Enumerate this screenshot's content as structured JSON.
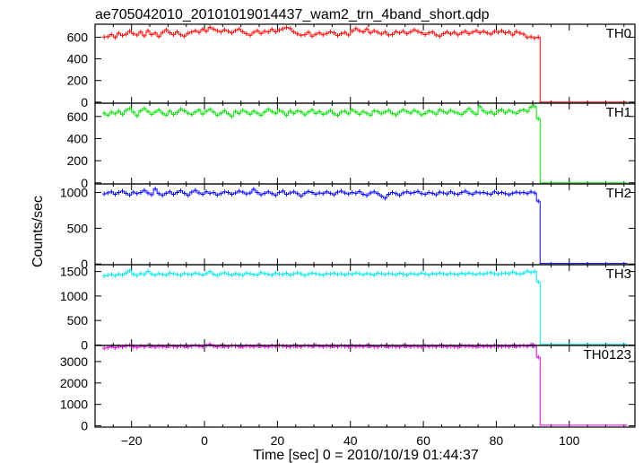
{
  "chart_data": {
    "type": "line",
    "title": "ae705042010_20101019014437_wam2_trn_4band_short.qdp",
    "xlabel": "Time [sec] 0 = 2010/10/19 01:44:37",
    "ylabel": "Counts/sec",
    "xlim": [
      -30,
      118
    ],
    "x_ticks": [
      -20,
      0,
      20,
      40,
      60,
      80,
      100
    ],
    "grid": false,
    "step": 1,
    "t_start": -28,
    "t_end": 116,
    "t_drop": 92,
    "panels": [
      {
        "name": "TH0",
        "color": "#ff0000",
        "ylim": [
          -10,
          720
        ],
        "yticks": [
          0,
          200,
          400,
          600
        ],
        "post_level": 0,
        "values": [
          602,
          605,
          625,
          598,
          638,
          615,
          628,
          655,
          632,
          620,
          648,
          612,
          660,
          625,
          638,
          606,
          644,
          668,
          640,
          624,
          650,
          622,
          610,
          636,
          648,
          660,
          645,
          672,
          655,
          690,
          675,
          660,
          648,
          668,
          655,
          640,
          662,
          676,
          650,
          632,
          618,
          645,
          660,
          635,
          655,
          648,
          672,
          650,
          664,
          678,
          690,
          680,
          648,
          630,
          618,
          624,
          646,
          610,
          628,
          640,
          622,
          635,
          650,
          640,
          615,
          632,
          644,
          620,
          656,
          680,
          660,
          648,
          676,
          640,
          660,
          645,
          630,
          648,
          620,
          625,
          652,
          640,
          655,
          632,
          648,
          668,
          654,
          640,
          625,
          640,
          648,
          620,
          610,
          632,
          648,
          630,
          645,
          622,
          640,
          655,
          632,
          646,
          660,
          641,
          655,
          640,
          628,
          654,
          645,
          660,
          640,
          648,
          620,
          652,
          638,
          628,
          598,
          604,
          592,
          600
        ]
      },
      {
        "name": "TH1",
        "color": "#00e000",
        "ylim": [
          -10,
          720
        ],
        "yticks": [
          0,
          200,
          400,
          600
        ],
        "post_level": 0,
        "values": [
          630,
          612,
          640,
          625,
          648,
          618,
          655,
          672,
          640,
          605,
          650,
          672,
          645,
          620,
          640,
          658,
          630,
          612,
          648,
          620,
          636,
          665,
          652,
          630,
          618,
          640,
          658,
          622,
          648,
          665,
          640,
          612,
          630,
          650,
          625,
          600,
          645,
          628,
          655,
          640,
          620,
          648,
          630,
          612,
          640,
          665,
          645,
          628,
          655,
          640,
          612,
          648,
          628,
          650,
          642,
          615,
          640,
          660,
          628,
          645,
          620,
          632,
          655,
          625,
          610,
          640,
          648,
          625,
          660,
          640,
          620,
          645,
          630,
          612,
          650,
          645,
          625,
          640,
          655,
          628,
          615,
          640,
          660,
          645,
          630,
          655,
          640,
          615,
          628,
          650,
          640,
          622,
          660,
          645,
          632,
          655,
          640,
          630,
          618,
          642,
          670,
          640,
          620,
          690,
          650,
          630,
          642,
          620,
          648,
          660,
          632,
          655,
          640,
          628,
          652,
          660,
          645,
          685,
          690,
          580
        ]
      },
      {
        "name": "TH2",
        "color": "#0000ff",
        "ylim": [
          -10,
          1120
        ],
        "yticks": [
          0,
          500,
          1000
        ],
        "post_level": 8,
        "values": [
          980,
          995,
          1010,
          975,
          1000,
          1020,
          990,
          965,
          1005,
          985,
          1000,
          1030,
          995,
          970,
          1050,
          985,
          960,
          990,
          1010,
          975,
          1000,
          1025,
          990,
          960,
          1005,
          1030,
          995,
          975,
          1010,
          990,
          1000,
          965,
          985,
          1010,
          1000,
          975,
          995,
          1020,
          1005,
          980,
          995,
          1045,
          1000,
          970,
          990,
          1010,
          985,
          960,
          1000,
          1020,
          975,
          995,
          1010,
          985,
          950,
          990,
          1015,
          1000,
          975,
          995,
          985,
          1010,
          990,
          970,
          1005,
          1020,
          995,
          980,
          1000,
          990,
          1015,
          975,
          960,
          995,
          1010,
          985,
          950,
          920,
          975,
          1000,
          985,
          960,
          995,
          1010,
          990,
          1000,
          1015,
          985,
          975,
          1000,
          990,
          970,
          1005,
          995,
          980,
          1010,
          985,
          975,
          1000,
          1020,
          990,
          975,
          1005,
          995,
          1000,
          985,
          975,
          1010,
          990,
          1000,
          985,
          970,
          990,
          1005,
          995,
          1000,
          985,
          1010,
          995,
          880
        ]
      },
      {
        "name": "TH3",
        "color": "#00e8e8",
        "ylim": [
          -10,
          1640
        ],
        "yticks": [
          0,
          500,
          1000,
          1500
        ],
        "post_level": 12,
        "values": [
          1410,
          1425,
          1440,
          1415,
          1450,
          1430,
          1470,
          1520,
          1445,
          1420,
          1460,
          1440,
          1505,
          1450,
          1425,
          1460,
          1440,
          1430,
          1470,
          1455,
          1440,
          1425,
          1460,
          1445,
          1435,
          1470,
          1450,
          1430,
          1460,
          1500,
          1445,
          1420,
          1455,
          1475,
          1450,
          1430,
          1460,
          1440,
          1425,
          1470,
          1455,
          1440,
          1430,
          1480,
          1460,
          1445,
          1430,
          1470,
          1450,
          1440,
          1465,
          1430,
          1455,
          1475,
          1450,
          1420,
          1445,
          1470,
          1455,
          1440,
          1430,
          1460,
          1450,
          1470,
          1440,
          1455,
          1430,
          1460,
          1445,
          1470,
          1455,
          1435,
          1460,
          1445,
          1430,
          1470,
          1455,
          1440,
          1460,
          1450,
          1435,
          1465,
          1445,
          1430,
          1460,
          1450,
          1440,
          1470,
          1455,
          1430,
          1460,
          1445,
          1470,
          1455,
          1440,
          1460,
          1450,
          1435,
          1465,
          1445,
          1470,
          1455,
          1440,
          1460,
          1445,
          1470,
          1480,
          1455,
          1440,
          1460,
          1470,
          1455,
          1490,
          1460,
          1445,
          1470,
          1510,
          1480,
          1500,
          1290
        ]
      },
      {
        "name": "TH0123",
        "color": "#e000e0",
        "ylim": [
          -60,
          3750
        ],
        "yticks": [
          0,
          1000,
          2000,
          3000
        ],
        "post_level": 30,
        "values": [
          3620,
          3650,
          3700,
          3640,
          3710,
          3680,
          3720,
          3760,
          3700,
          3660,
          3720,
          3690,
          3750,
          3710,
          3670,
          3720,
          3700,
          3680,
          3740,
          3710,
          3690,
          3730,
          3700,
          3680,
          3720,
          3760,
          3710,
          3690,
          3740,
          3800,
          3720,
          3680,
          3730,
          3710,
          3690,
          3740,
          3720,
          3700,
          3680,
          3730,
          3710,
          3690,
          3740,
          3720,
          3700,
          3680,
          3730,
          3710,
          3750,
          3720,
          3700,
          3680,
          3730,
          3710,
          3690,
          3740,
          3720,
          3700,
          3760,
          3710,
          3690,
          3730,
          3700,
          3720,
          3690,
          3740,
          3710,
          3690,
          3730,
          3700,
          3720,
          3690,
          3740,
          3710,
          3700,
          3680,
          3730,
          3710,
          3690,
          3720,
          3700,
          3680,
          3730,
          3710,
          3690,
          3720,
          3700,
          3680,
          3730,
          3700,
          3720,
          3690,
          3740,
          3710,
          3690,
          3720,
          3700,
          3680,
          3730,
          3710,
          3720,
          3700,
          3680,
          3730,
          3700,
          3720,
          3690,
          3740,
          3710,
          3700,
          3720,
          3690,
          3730,
          3700,
          3720,
          3740,
          3710,
          3780,
          3730,
          3200
        ]
      }
    ]
  }
}
